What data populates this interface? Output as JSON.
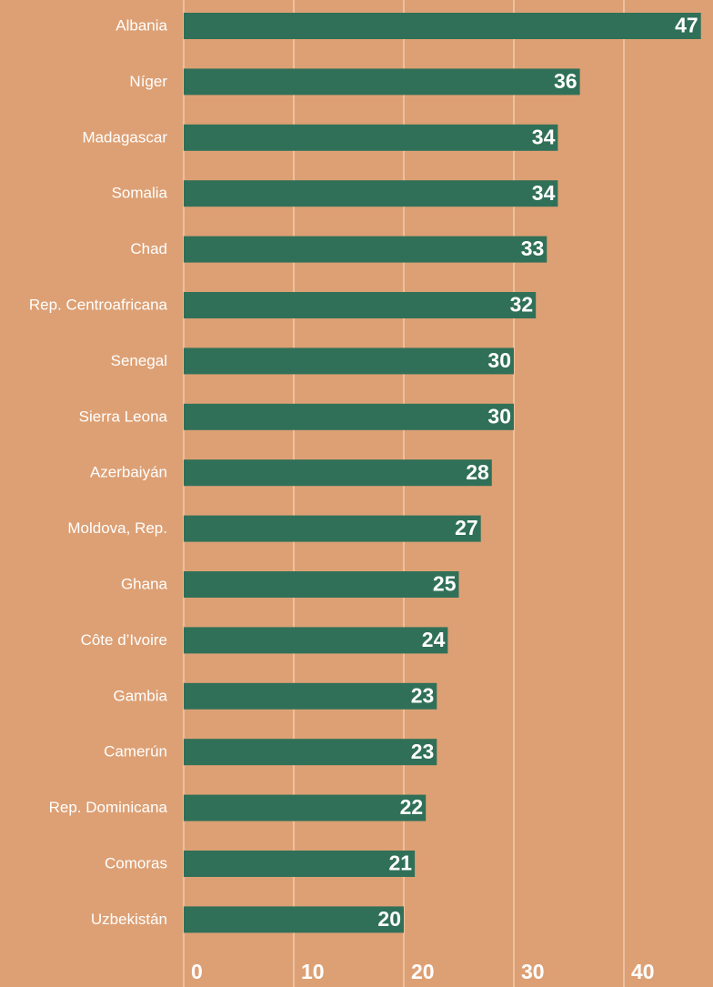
{
  "chart_data": {
    "type": "bar",
    "orientation": "horizontal",
    "categories": [
      "Albania",
      "Níger",
      "Madagascar",
      "Somalia",
      "Chad",
      "Rep. Centroafricana",
      "Senegal",
      "Sierra Leona",
      "Azerbaiyán",
      "Moldova, Rep.",
      "Ghana",
      "Côte d’Ivoire",
      "Gambia",
      "Camerún",
      "Rep. Dominicana",
      "Comoras",
      "Uzbekistán"
    ],
    "values": [
      47,
      36,
      34,
      34,
      33,
      32,
      30,
      30,
      28,
      27,
      25,
      24,
      23,
      23,
      22,
      21,
      20
    ],
    "value_labels": [
      "47",
      "36",
      "34",
      "34",
      "33",
      "32",
      "30",
      "30",
      "28",
      "27",
      "25",
      "24",
      "23",
      "23",
      "22",
      "21",
      "20"
    ],
    "x_ticks": [
      "0",
      "10",
      "20",
      "30",
      "40"
    ],
    "xlim": [
      0,
      47
    ],
    "grid": true,
    "title": "",
    "xlabel": "",
    "ylabel": ""
  },
  "colors": {
    "background": "#dda074",
    "bar": "#317058",
    "text": "#ffffff",
    "grid": "#f3d2b8"
  }
}
